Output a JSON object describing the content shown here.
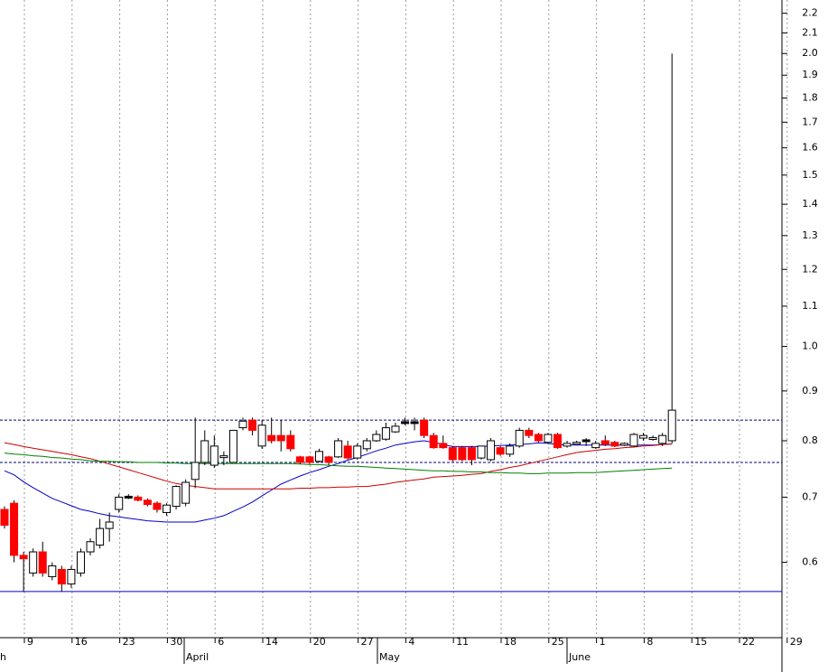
{
  "chart_data": {
    "type": "candlestick",
    "log_scale": true,
    "ylim": [
      0.502,
      2.27
    ],
    "yticks": [
      2.2,
      2.1,
      {
        "value": 2,
        "label": "2.0"
      },
      1.9,
      1.8,
      1.7,
      1.6,
      1.5,
      1.4,
      1.3,
      1.2,
      1.1,
      {
        "value": 1,
        "label": "1.0"
      },
      0.9,
      0.8,
      0.7,
      0.6
    ],
    "x_labels": [
      "9",
      "16",
      "23",
      "30",
      "6",
      "14",
      "20",
      "27",
      "4",
      "11",
      "18",
      "25",
      "1",
      "8",
      "15",
      "22",
      "29"
    ],
    "month_labels": [
      "ch",
      "April",
      "May",
      "June"
    ],
    "up_color": "#ffffff",
    "down_color": "#ff0000",
    "flat_color": "#000000",
    "open": [
      0.68,
      0.69,
      0.61,
      0.585,
      0.615,
      0.58,
      0.59,
      0.57,
      0.585,
      0.615,
      0.625,
      0.65,
      0.68,
      0.7,
      0.7,
      0.695,
      0.69,
      0.675,
      0.685,
      0.69,
      0.73,
      0.76,
      0.755,
      0.77,
      0.76,
      0.825,
      0.84,
      0.79,
      0.81,
      0.81,
      0.81,
      0.77,
      0.77,
      0.762,
      0.77,
      0.77,
      0.79,
      0.768,
      0.785,
      0.8,
      0.803,
      0.817,
      0.835,
      0.835,
      0.84,
      0.81,
      0.795,
      0.787,
      0.787,
      0.787,
      0.768,
      0.765,
      0.787,
      0.775,
      0.79,
      0.82,
      0.812,
      0.797,
      0.812,
      0.79,
      0.795,
      0.8,
      0.787,
      0.8,
      0.797,
      0.793,
      0.79,
      0.805,
      0.805,
      0.795,
      0.8
    ],
    "high": [
      0.685,
      0.695,
      0.615,
      0.62,
      0.63,
      0.6,
      0.595,
      0.595,
      0.62,
      0.635,
      0.665,
      0.675,
      0.705,
      0.705,
      0.703,
      0.698,
      0.693,
      0.69,
      0.72,
      0.73,
      0.845,
      0.82,
      0.81,
      0.78,
      0.82,
      0.845,
      0.845,
      0.84,
      0.845,
      0.84,
      0.82,
      0.772,
      0.772,
      0.785,
      0.772,
      0.805,
      0.8,
      0.795,
      0.805,
      0.82,
      0.835,
      0.835,
      0.845,
      0.845,
      0.845,
      0.815,
      0.81,
      0.79,
      0.79,
      0.79,
      0.79,
      0.805,
      0.79,
      0.795,
      0.825,
      0.825,
      0.815,
      0.815,
      0.815,
      0.8,
      0.8,
      0.805,
      0.8,
      0.81,
      0.8,
      0.797,
      0.815,
      0.815,
      0.81,
      0.815,
      2.0
    ],
    "low": [
      0.65,
      0.6,
      0.56,
      0.58,
      0.58,
      0.575,
      0.56,
      0.565,
      0.58,
      0.61,
      0.62,
      0.63,
      0.675,
      0.697,
      0.693,
      0.685,
      0.675,
      0.67,
      0.68,
      0.685,
      0.715,
      0.755,
      0.75,
      0.755,
      0.76,
      0.82,
      0.81,
      0.785,
      0.795,
      0.78,
      0.78,
      0.757,
      0.757,
      0.76,
      0.755,
      0.768,
      0.765,
      0.765,
      0.78,
      0.798,
      0.8,
      0.815,
      0.83,
      0.82,
      0.805,
      0.785,
      0.785,
      0.762,
      0.762,
      0.755,
      0.765,
      0.762,
      0.772,
      0.77,
      0.787,
      0.805,
      0.797,
      0.795,
      0.785,
      0.787,
      0.793,
      0.79,
      0.785,
      0.79,
      0.788,
      0.79,
      0.788,
      0.8,
      0.8,
      0.79,
      0.795
    ],
    "close": [
      0.655,
      0.61,
      0.605,
      0.615,
      0.585,
      0.595,
      0.57,
      0.59,
      0.615,
      0.63,
      0.65,
      0.66,
      0.7,
      0.7,
      0.695,
      0.688,
      0.68,
      0.687,
      0.718,
      0.725,
      0.76,
      0.8,
      0.79,
      0.772,
      0.82,
      0.838,
      0.82,
      0.83,
      0.8,
      0.8,
      0.785,
      0.76,
      0.76,
      0.78,
      0.76,
      0.8,
      0.768,
      0.79,
      0.8,
      0.812,
      0.825,
      0.828,
      0.835,
      0.835,
      0.81,
      0.787,
      0.787,
      0.765,
      0.765,
      0.765,
      0.79,
      0.8,
      0.775,
      0.79,
      0.82,
      0.81,
      0.8,
      0.812,
      0.787,
      0.795,
      0.797,
      0.8,
      0.795,
      0.793,
      0.79,
      0.795,
      0.812,
      0.81,
      0.806,
      0.81,
      0.86
    ],
    "moving_averages": [
      {
        "color": "#0000cc",
        "values": [
          0.745,
          0.738,
          0.726,
          0.716,
          0.707,
          0.698,
          0.692,
          0.686,
          0.68,
          0.677,
          0.673,
          0.67,
          0.668,
          0.666,
          0.664,
          0.662,
          0.661,
          0.66,
          0.66,
          0.66,
          0.66,
          0.663,
          0.666,
          0.67,
          0.677,
          0.684,
          0.692,
          0.702,
          0.712,
          0.722,
          0.729,
          0.736,
          0.742,
          0.747,
          0.753,
          0.758,
          0.764,
          0.769,
          0.775,
          0.781,
          0.786,
          0.792,
          0.795,
          0.798,
          0.8,
          0.797,
          0.793,
          0.789,
          0.789,
          0.789,
          0.789,
          0.79,
          0.791,
          0.792,
          0.793,
          0.794,
          0.796,
          0.795,
          0.793,
          0.792,
          0.792,
          0.792,
          0.792,
          0.792,
          0.792,
          0.792,
          0.792,
          0.792,
          0.792,
          0.793,
          0.794
        ]
      },
      {
        "color": "#cc0000",
        "values": [
          0.796,
          0.793,
          0.789,
          0.786,
          0.783,
          0.78,
          0.777,
          0.774,
          0.77,
          0.767,
          0.762,
          0.757,
          0.752,
          0.747,
          0.742,
          0.737,
          0.732,
          0.727,
          0.723,
          0.72,
          0.718,
          0.716,
          0.714,
          0.714,
          0.714,
          0.714,
          0.714,
          0.714,
          0.714,
          0.714,
          0.714,
          0.715,
          0.715,
          0.716,
          0.716,
          0.717,
          0.717,
          0.718,
          0.718,
          0.72,
          0.722,
          0.725,
          0.727,
          0.729,
          0.731,
          0.734,
          0.735,
          0.736,
          0.737,
          0.739,
          0.74,
          0.744,
          0.747,
          0.751,
          0.754,
          0.758,
          0.762,
          0.766,
          0.77,
          0.774,
          0.778,
          0.78,
          0.782,
          0.784,
          0.785,
          0.787,
          0.788,
          0.79,
          0.791,
          0.793,
          0.794
        ]
      },
      {
        "color": "#008000",
        "values": [
          0.777,
          0.775,
          0.774,
          0.772,
          0.771,
          0.769,
          0.768,
          0.766,
          0.765,
          0.763,
          0.762,
          0.762,
          0.761,
          0.761,
          0.76,
          0.76,
          0.76,
          0.759,
          0.759,
          0.758,
          0.758,
          0.758,
          0.758,
          0.758,
          0.758,
          0.758,
          0.758,
          0.758,
          0.758,
          0.758,
          0.758,
          0.757,
          0.756,
          0.756,
          0.755,
          0.754,
          0.753,
          0.753,
          0.752,
          0.751,
          0.75,
          0.749,
          0.748,
          0.747,
          0.746,
          0.745,
          0.745,
          0.744,
          0.744,
          0.743,
          0.743,
          0.742,
          0.742,
          0.741,
          0.741,
          0.74,
          0.74,
          0.741,
          0.741,
          0.741,
          0.742,
          0.742,
          0.742,
          0.743,
          0.744,
          0.745,
          0.746,
          0.747,
          0.748,
          0.749,
          0.75
        ]
      }
    ],
    "hlines": [
      {
        "value": 0.84,
        "color": "#000080",
        "style": "dashed"
      },
      {
        "value": 0.76,
        "color": "#000080",
        "style": "dashed"
      },
      {
        "value": 0.56,
        "color": "#0000cc",
        "style": "solid"
      }
    ]
  }
}
